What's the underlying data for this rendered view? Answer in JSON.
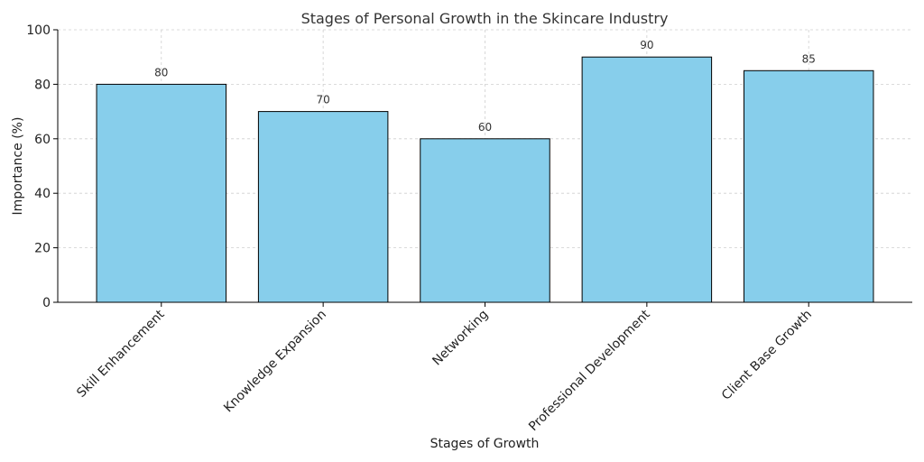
{
  "chart_data": {
    "type": "bar",
    "title": "Stages of Personal Growth in the Skincare Industry",
    "xlabel": "Stages of Growth",
    "ylabel": "Importance (%)",
    "categories": [
      "Skill Enhancement",
      "Knowledge Expansion",
      "Networking",
      "Professional Development",
      "Client Base Growth"
    ],
    "values": [
      80,
      70,
      60,
      90,
      85
    ],
    "data_labels": [
      "80",
      "70",
      "60",
      "90",
      "85"
    ],
    "ylim": [
      0,
      100
    ],
    "yticks": [
      0,
      20,
      40,
      60,
      80,
      100
    ],
    "ytick_labels": [
      "0",
      "20",
      "40",
      "60",
      "80",
      "100"
    ],
    "grid": true,
    "bar_color": "#87ceeb",
    "edge_color": "#000000",
    "xtick_rotation_deg": 45
  }
}
